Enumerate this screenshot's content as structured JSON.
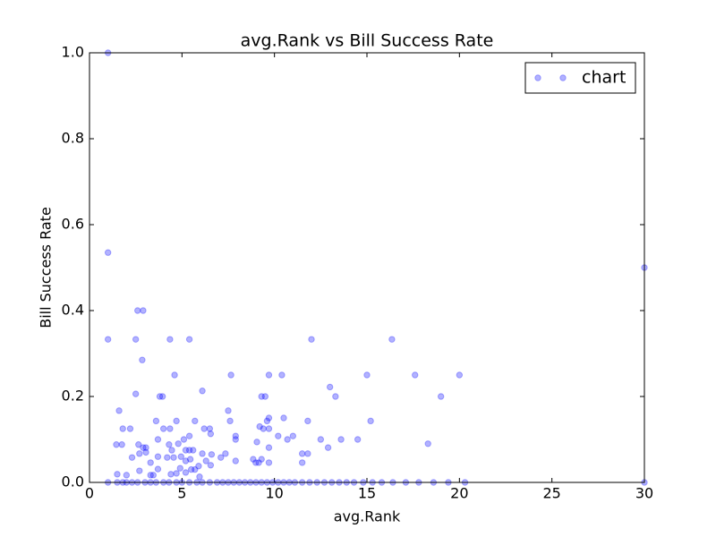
{
  "chart_data": {
    "type": "scatter",
    "title": "avg.Rank vs Bill Success Rate",
    "xlabel": "avg.Rank",
    "ylabel": "Bill Success Rate",
    "xlim": [
      0,
      30
    ],
    "ylim": [
      0,
      1
    ],
    "xticks": [
      0,
      5,
      10,
      15,
      20,
      25,
      30
    ],
    "yticks": [
      {
        "value": 0,
        "label": "0.0"
      },
      0.2,
      0.4,
      0.6,
      0.8,
      {
        "value": 1,
        "label": "1.0"
      }
    ],
    "legend": "upper right",
    "alpha": 0.3,
    "series": [
      {
        "name": "chart",
        "color": "#0000ff",
        "x": [
          1.0,
          1.0,
          1.0,
          2.6,
          2.9,
          2.5,
          4.35,
          5.4,
          12,
          16.35,
          2.85,
          4.6,
          7.65,
          9.7,
          10.4,
          15,
          17.6,
          20,
          13,
          6.1,
          2.5,
          3.8,
          3.95,
          9.3,
          9.5,
          13.3,
          19,
          1.6,
          7.5,
          10.5,
          9.7,
          3.6,
          4.7,
          5.7,
          7.6,
          9.6,
          11.8,
          15.2,
          9.2,
          1.8,
          2.2,
          4.0,
          4.35,
          6.2,
          6.5,
          9.4,
          9.7,
          5.4,
          6.55,
          7.9,
          10.2,
          11,
          3.7,
          5.1,
          7.9,
          10.7,
          12.5,
          13.6,
          14.5,
          1.45,
          1.75,
          2.65,
          2.9,
          4.3,
          4.8,
          9.05,
          12.9,
          18.3,
          3.05,
          3.05,
          4.45,
          5.2,
          5.4,
          5.6,
          9.7,
          2.3,
          2.7,
          3.7,
          4.2,
          4.55,
          4.95,
          6.1,
          6.6,
          7.1,
          7.35,
          8.85,
          9.3,
          11.5,
          11.8,
          3.3,
          5.2,
          5.45,
          6.3,
          7.9,
          8.99,
          9.15,
          9.7,
          11.5,
          6.55,
          5.9,
          5.7,
          5.5,
          4.9,
          3.7,
          2.7,
          1.5,
          2.0,
          3.3,
          3.45,
          4.7,
          5.2,
          5.95,
          4.4,
          1.0,
          1.5,
          1.8,
          2.0,
          2.3,
          2.6,
          3.0,
          3.3,
          3.6,
          4.0,
          4.3,
          4.7,
          5.0,
          5.4,
          5.8,
          6.1,
          6.5,
          6.9,
          7.2,
          7.5,
          7.8,
          8.1,
          8.4,
          8.7,
          9.0,
          9.3,
          9.6,
          9.9,
          10.2,
          10.5,
          10.8,
          11.1,
          11.5,
          11.9,
          12.3,
          12.7,
          13.1,
          13.5,
          13.9,
          14.3,
          14.8,
          15.3,
          15.8,
          16.4,
          17.1,
          17.8,
          18.6,
          19.4,
          20.3,
          30,
          30
        ],
        "values": [
          1.0,
          0.535,
          0.333,
          0.4,
          0.4,
          0.333,
          0.333,
          0.333,
          0.333,
          0.333,
          0.285,
          0.25,
          0.25,
          0.25,
          0.25,
          0.25,
          0.25,
          0.25,
          0.222,
          0.213,
          0.206,
          0.2,
          0.2,
          0.2,
          0.2,
          0.2,
          0.2,
          0.167,
          0.167,
          0.15,
          0.15,
          0.143,
          0.143,
          0.143,
          0.143,
          0.143,
          0.143,
          0.143,
          0.13,
          0.125,
          0.125,
          0.125,
          0.125,
          0.125,
          0.125,
          0.125,
          0.125,
          0.108,
          0.113,
          0.108,
          0.108,
          0.108,
          0.1,
          0.1,
          0.1,
          0.1,
          0.1,
          0.1,
          0.1,
          0.088,
          0.088,
          0.088,
          0.081,
          0.088,
          0.09,
          0.094,
          0.081,
          0.09,
          0.081,
          0.07,
          0.075,
          0.075,
          0.075,
          0.075,
          0.081,
          0.058,
          0.067,
          0.06,
          0.058,
          0.058,
          0.06,
          0.067,
          0.065,
          0.058,
          0.067,
          0.054,
          0.054,
          0.067,
          0.067,
          0.046,
          0.05,
          0.054,
          0.05,
          0.05,
          0.046,
          0.046,
          0.046,
          0.046,
          0.04,
          0.038,
          0.03,
          0.03,
          0.033,
          0.031,
          0.027,
          0.019,
          0.017,
          0.017,
          0.017,
          0.021,
          0.023,
          0.013,
          0.019,
          0,
          0,
          0,
          0,
          0,
          0,
          0,
          0,
          0,
          0,
          0,
          0,
          0,
          0,
          0,
          0,
          0,
          0,
          0,
          0,
          0,
          0,
          0,
          0,
          0,
          0,
          0,
          0,
          0,
          0,
          0,
          0,
          0,
          0,
          0,
          0,
          0,
          0,
          0,
          0,
          0,
          0,
          0,
          0,
          0,
          0,
          0,
          0,
          0,
          0,
          0.5
        ]
      }
    ]
  }
}
